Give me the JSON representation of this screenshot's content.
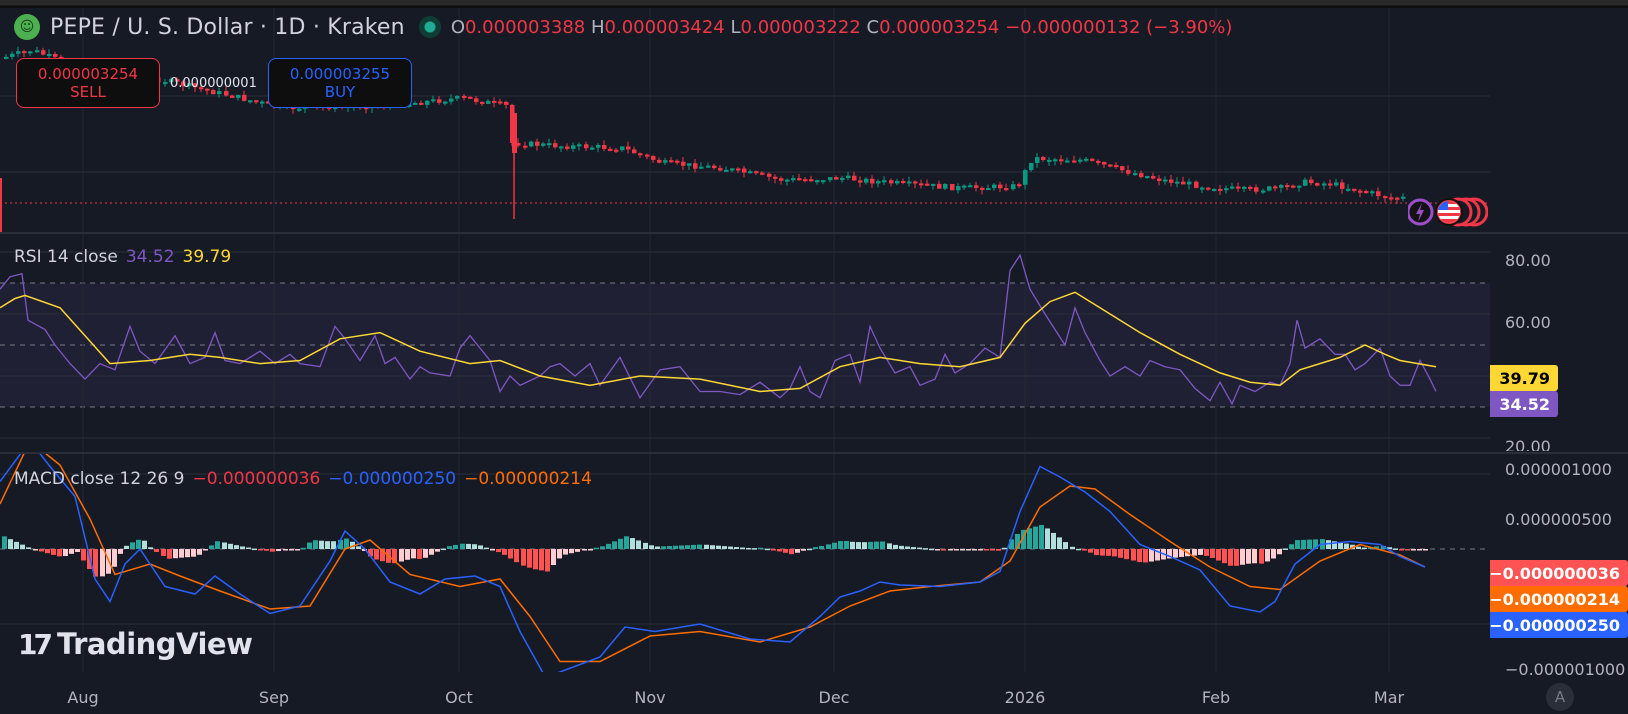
{
  "header": {
    "symbol_icon": "pepe-frog-icon",
    "title": "PEPE / U. S. Dollar · 1D · Kraken",
    "market_status": "market-open-dot",
    "ohlc": {
      "o_label": "O",
      "o": "0.000003388",
      "h_label": "H",
      "h": "0.000003424",
      "l_label": "L",
      "l": "0.000003222",
      "c_label": "C",
      "c": "0.000003254",
      "change": "−0.000000132 (−3.90%)"
    }
  },
  "trade": {
    "sell_price": "0.000003254",
    "sell_label": "SELL",
    "spread": "0.000000001",
    "buy_price": "0.000003255",
    "buy_label": "BUY"
  },
  "rsi": {
    "label": "RSI 14 close",
    "value": "34.52",
    "ma_value": "39.79",
    "axis": [
      "80.00",
      "60.00",
      "20.00"
    ],
    "tag_ma": "39.79",
    "tag_rsi": "34.52"
  },
  "macd": {
    "label": "MACD close 12 26 9",
    "hist": "−0.000000036",
    "macd": "−0.000000250",
    "signal": "−0.000000214",
    "axis": [
      "0.000001000",
      "0.000000500",
      "−0.000001000"
    ],
    "tag_hist": "−0.000000036",
    "tag_signal": "−0.000000214",
    "tag_macd": "−0.000000250"
  },
  "time_axis": [
    "Aug",
    "Sep",
    "Oct",
    "Nov",
    "Dec",
    "2026",
    "Feb",
    "Mar"
  ],
  "auto_scale_label": "A",
  "brand": "TradingView",
  "colors": {
    "up": "#089981",
    "down": "#f23645",
    "rsi": "#7e57c2",
    "rsi_ma": "#fdd835",
    "macd": "#2962ff",
    "signal": "#ff6d00",
    "hist_up_strong": "#26a69a",
    "hist_up_weak": "#b2dfdb",
    "hist_down_strong": "#ff5252",
    "hist_down_weak": "#ffcdd2",
    "bg": "#161a25"
  },
  "chart_data": {
    "type": "candlestick",
    "title": "PEPE / U. S. Dollar · 1D · Kraken",
    "x_ticks": [
      "Aug",
      "Sep",
      "Oct",
      "Nov",
      "Dec",
      "2026",
      "Feb",
      "Mar"
    ],
    "close_price": 3.254e-06,
    "approx_closes_by_month": {
      "Aug": 1.05e-05,
      "Sep": 1e-05,
      "Oct": 1.03e-05,
      "Nov": 7e-06,
      "Dec": 5.6e-06,
      "2026": 5.8e-06,
      "Feb": 4e-06,
      "Mar": 3.3e-06
    },
    "rsi": {
      "ylim": [
        20,
        80
      ],
      "bands": [
        30,
        50,
        70
      ],
      "last": 34.52,
      "ma_last": 39.79
    },
    "macd": {
      "ylim": [
        -1e-06,
        1e-06
      ],
      "last_macd": -2.5e-07,
      "last_signal": -2.14e-07,
      "last_hist": -3.6e-08
    }
  }
}
